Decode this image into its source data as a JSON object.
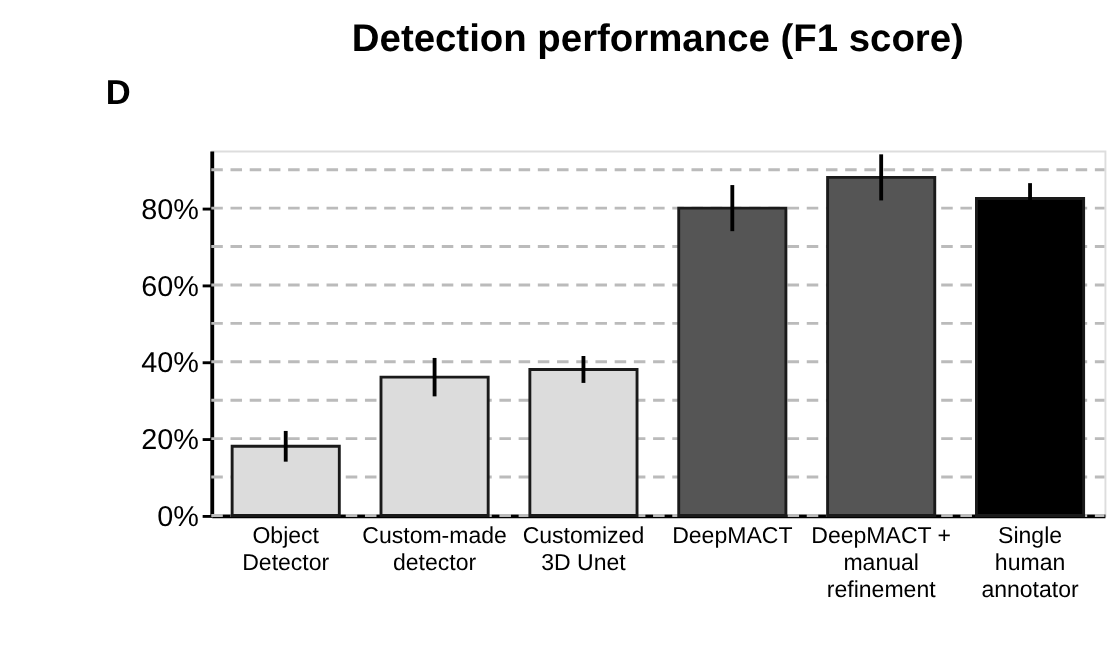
{
  "chart_data": {
    "type": "bar",
    "title": "Detection performance (F1 score)",
    "annotations": [
      "D"
    ],
    "categories": [
      "Object Detector",
      "Custom-made detector",
      "Customized 3D Unet",
      "DeepMACT",
      "DeepMACT + manual refinement",
      "Single human annotator"
    ],
    "values": [
      18,
      36,
      38,
      80,
      88,
      82.5
    ],
    "colors": [
      "#dcdcdc",
      "#dcdcdc",
      "#dcdcdc",
      "#555555",
      "#555555",
      "#000000"
    ],
    "errors": [
      4,
      5,
      3.5,
      6,
      6,
      4
    ],
    "ylim": [
      0,
      95
    ],
    "yticks": [
      {
        "value": 0,
        "label": "0%"
      },
      {
        "value": 10,
        "label": null
      },
      {
        "value": 20,
        "label": "20%"
      },
      {
        "value": 30,
        "label": null
      },
      {
        "value": 40,
        "label": "40%"
      },
      {
        "value": 50,
        "label": null
      },
      {
        "value": 60,
        "label": "60%"
      },
      {
        "value": 70,
        "label": null
      },
      {
        "value": 80,
        "label": "80%"
      },
      {
        "value": 90,
        "label": null
      }
    ],
    "grid": "y"
  }
}
